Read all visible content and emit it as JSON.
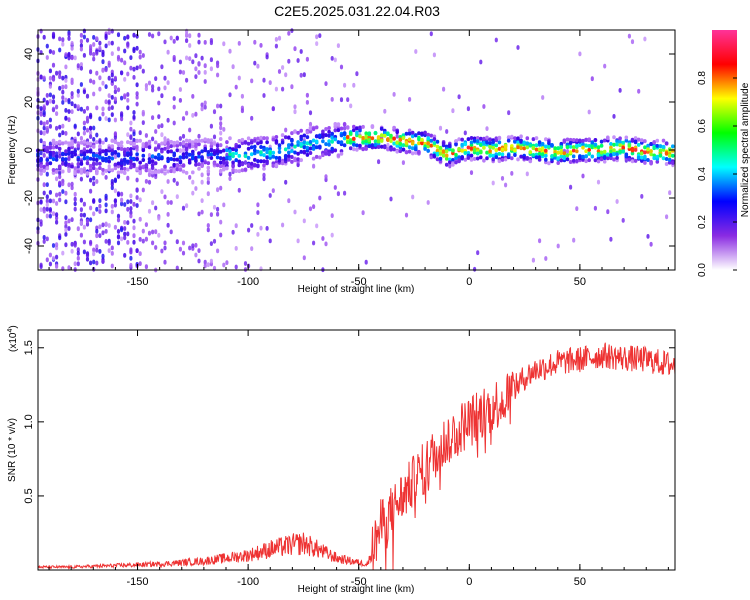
{
  "title": "C2E5.2025.031.22.04.R03",
  "chart_data": [
    {
      "type": "heatmap",
      "xlabel": "Height of straight line (km)",
      "ylabel": "Frequency (Hz)",
      "xlim": [
        -195,
        93
      ],
      "ylim": [
        -50,
        50
      ],
      "xticks": [
        "-150",
        "-100",
        "-50",
        "0",
        "50"
      ],
      "yticks": [
        "-40",
        "-20",
        "0",
        "20",
        "40"
      ],
      "ridge": {
        "x": [
          -150,
          -130,
          -110,
          -100,
          -90,
          -80,
          -70,
          -60,
          -55,
          -40,
          -30,
          -20,
          -10,
          0,
          10,
          20,
          30,
          40,
          50,
          60,
          70,
          80,
          90
        ],
        "y": [
          -3,
          -3,
          -2,
          -2,
          -1,
          1,
          3,
          4,
          5,
          5,
          4,
          3,
          -2,
          1,
          0,
          1,
          0,
          -1,
          0,
          0,
          1,
          -1,
          -1
        ]
      },
      "colorbar": {
        "label": "Normalized spectral amplitude",
        "range": [
          0,
          1
        ],
        "ticks": [
          "0.0",
          "0.2",
          "0.4",
          "0.6",
          "0.8"
        ],
        "colors": [
          "#ffffff",
          "#8a2be2",
          "#0000ff",
          "#00ffff",
          "#00ff00",
          "#ffff00",
          "#ff0000",
          "#ff3399"
        ]
      }
    },
    {
      "type": "line",
      "xlabel": "Height of straight line (km)",
      "ylabel": "SNR (10 * v/v)",
      "y_multiplier": "(x10",
      "y_multiplier_exp": "4",
      "y_multiplier_close": ")",
      "xlim": [
        -195,
        93
      ],
      "ylim": [
        0,
        1.62
      ],
      "xticks": [
        "-150",
        "-100",
        "-50",
        "0",
        "50"
      ],
      "yticks": [
        "0.5",
        "1.0",
        "1.5"
      ],
      "color": "#ee3333",
      "series": [
        {
          "x": [
            -195,
            -180,
            -160,
            -140,
            -120,
            -110,
            -100,
            -90,
            -80,
            -75,
            -70,
            -60,
            -50,
            -46,
            -44,
            -40,
            -35,
            -30,
            -25,
            -20,
            -15,
            -10,
            -5,
            0,
            5,
            10,
            15,
            20,
            25,
            30,
            40,
            50,
            60,
            70,
            80,
            93
          ],
          "y": [
            0.02,
            0.02,
            0.03,
            0.04,
            0.06,
            0.08,
            0.1,
            0.14,
            0.17,
            0.18,
            0.15,
            0.08,
            0.05,
            0.04,
            0.12,
            0.3,
            0.4,
            0.5,
            0.6,
            0.7,
            0.8,
            0.88,
            0.95,
            1.0,
            1.05,
            1.1,
            1.15,
            1.22,
            1.3,
            1.35,
            1.4,
            1.42,
            1.45,
            1.43,
            1.42,
            1.38
          ]
        }
      ]
    }
  ]
}
